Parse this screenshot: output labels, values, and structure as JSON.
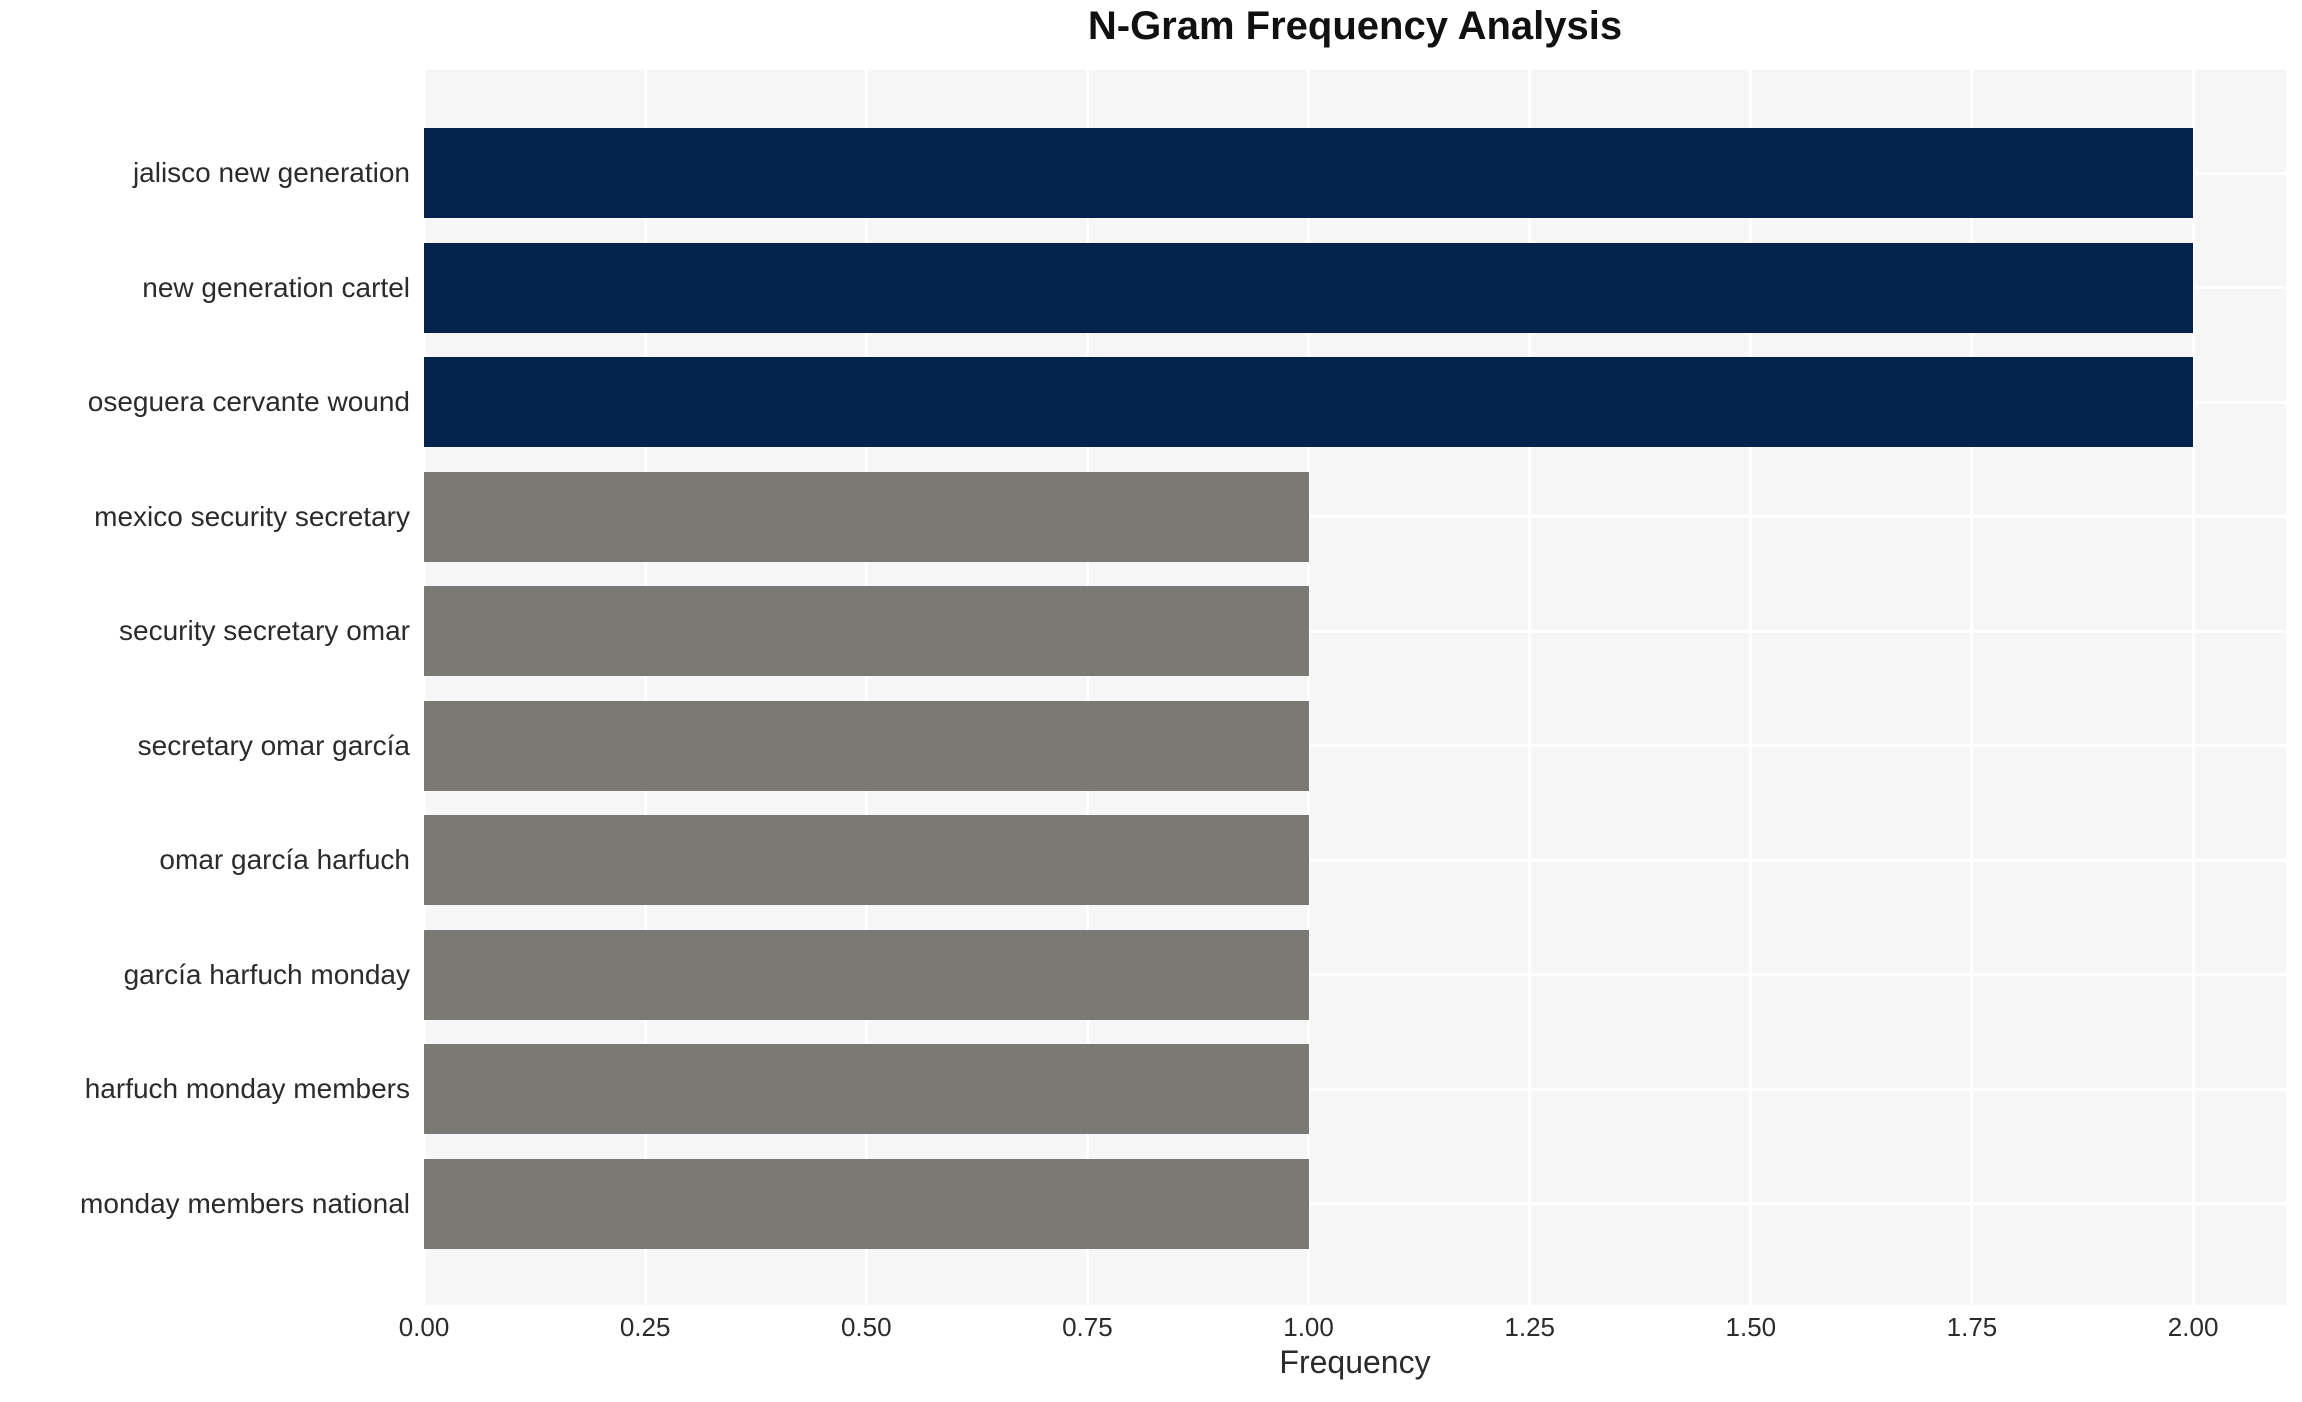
{
  "figure": {
    "title": "N-Gram Frequency Analysis",
    "xlabel": "Frequency"
  },
  "chart_data": {
    "type": "bar",
    "orientation": "horizontal",
    "title": "N-Gram Frequency Analysis",
    "xlabel": "Frequency",
    "ylabel": "",
    "categories": [
      "jalisco new generation",
      "new generation cartel",
      "oseguera cervante wound",
      "mexico security secretary",
      "security secretary omar",
      "secretary omar garcía",
      "omar garcía harfuch",
      "garcía harfuch monday",
      "harfuch monday members",
      "monday members national"
    ],
    "values": [
      2,
      2,
      2,
      1,
      1,
      1,
      1,
      1,
      1,
      1
    ],
    "bar_colors": [
      "#03234c",
      "#03234c",
      "#03234c",
      "#7a7974",
      "#7a7974",
      "#7a7974",
      "#7a7974",
      "#7a7974",
      "#7a7974",
      "#7a7974"
    ],
    "xlim": [
      0,
      2.105
    ],
    "xticks": {
      "values": [
        0,
        0.25,
        0.5,
        0.75,
        1.0,
        1.25,
        1.5,
        1.75,
        2.0
      ],
      "labels": [
        "0.00",
        "0.25",
        "0.50",
        "0.75",
        "1.00",
        "1.25",
        "1.50",
        "1.75",
        "2.00"
      ]
    },
    "grid": true,
    "legend": false,
    "colors": {
      "highlight_bar": "#03234c",
      "default_bar": "#7a7974",
      "plot_background": "#f6f6f7",
      "gridline": "#ffffff",
      "text": "#2b2b2b",
      "title_text": "#111111"
    }
  }
}
